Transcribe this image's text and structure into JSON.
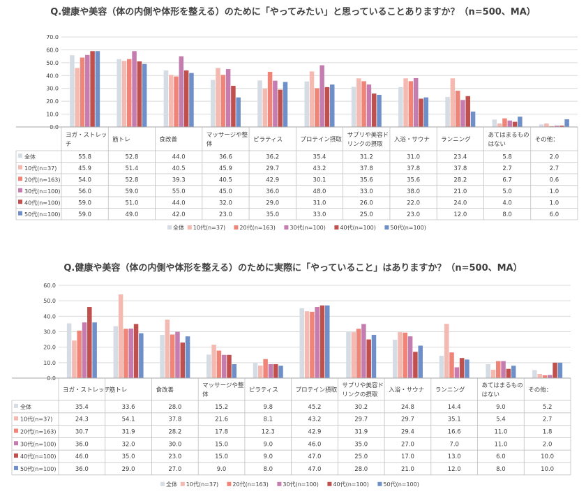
{
  "chart_data": [
    {
      "type": "bar",
      "title": "Q.健康や美容（体の内側や体形を整える）のために「やってみたい」と思っていることありますか？（n=500、MA）",
      "ylim": [
        0,
        70
      ],
      "yticks": [
        "0.0",
        "10.0",
        "20.0",
        "30.0",
        "40.0",
        "50.0",
        "60.0",
        "70.0"
      ],
      "grid": true,
      "legend": "bottom",
      "categories": [
        "ヨガ・ストレッチ",
        "筋トレ",
        "食改善",
        "マッサージや整体",
        "ピラティス",
        "プロテイン摂取",
        "サプリや美容ドリンクの摂取",
        "入浴・サウナ",
        "ランニング",
        "あてはまるものはない",
        "その他："
      ],
      "category_lines": [
        [
          "ヨガ・ストレッ",
          "チ"
        ],
        [
          "筋トレ"
        ],
        [
          "食改善"
        ],
        [
          "マッサージや整",
          "体"
        ],
        [
          "ピラティス"
        ],
        [
          "プロテイン摂取"
        ],
        [
          "サプリや美容ド",
          "リンクの摂取"
        ],
        [
          "入浴・サウナ"
        ],
        [
          "ランニング"
        ],
        [
          "あてはまるもの",
          "はない"
        ],
        [
          "その他："
        ]
      ],
      "series": [
        {
          "name": "全体",
          "color": "#d6dce4",
          "values": [
            "55.8",
            "52.8",
            "44.0",
            "36.6",
            "36.2",
            "35.4",
            "31.2",
            "31.0",
            "23.4",
            "5.8",
            "2.0"
          ]
        },
        {
          "name": "10代(n=37)",
          "color": "#f4b9b0",
          "values": [
            "45.9",
            "51.4",
            "40.5",
            "45.9",
            "29.7",
            "43.2",
            "37.8",
            "37.8",
            "37.8",
            "2.7",
            "2.7"
          ]
        },
        {
          "name": "20代(n=163)",
          "color": "#ef8479",
          "values": [
            "54.0",
            "52.8",
            "39.3",
            "40.5",
            "42.9",
            "30.1",
            "35.6",
            "35.6",
            "28.2",
            "6.7",
            "0.6"
          ]
        },
        {
          "name": "30代(n=100)",
          "color": "#c57daf",
          "values": [
            "56.0",
            "59.0",
            "55.0",
            "45.0",
            "36.0",
            "48.0",
            "33.0",
            "38.0",
            "21.0",
            "5.0",
            "1.0"
          ]
        },
        {
          "name": "40代(n=100)",
          "color": "#c0504d",
          "values": [
            "59.0",
            "51.0",
            "44.0",
            "32.0",
            "29.0",
            "31.0",
            "26.0",
            "22.0",
            "24.0",
            "4.0",
            "1.0"
          ]
        },
        {
          "name": "50代(n=100)",
          "color": "#6f8fc9",
          "values": [
            "59.0",
            "49.0",
            "42.0",
            "23.0",
            "35.0",
            "33.0",
            "25.0",
            "23.0",
            "12.0",
            "8.0",
            "6.0"
          ]
        }
      ]
    },
    {
      "type": "bar",
      "title": "Q.健康や美容（体の内側や体形を整える）のために実際に「やっていること」はありますか？（n=500、MA）",
      "ylim": [
        0,
        60
      ],
      "yticks": [
        "0.0",
        "10.0",
        "20.0",
        "30.0",
        "40.0",
        "50.0",
        "60.0"
      ],
      "grid": true,
      "legend": "bottom",
      "categories": [
        "ヨガ・ストレッチ",
        "筋トレ",
        "食改善",
        "マッサージや整体",
        "ピラティス",
        "プロテイン摂取",
        "サプリや美容ドリンクの摂取",
        "入浴・サウナ",
        "ランニング",
        "あてはまるものはない",
        "その他："
      ],
      "category_lines": [
        [
          "ヨガ・ストレッチ"
        ],
        [
          "筋トレ"
        ],
        [
          "食改善"
        ],
        [
          "マッサージや整",
          "体"
        ],
        [
          "ピラティス"
        ],
        [
          "プロテイン摂取"
        ],
        [
          "サプリや美容ド",
          "リンクの摂取"
        ],
        [
          "入浴・サウナ"
        ],
        [
          "ランニング"
        ],
        [
          "あてはまるもの",
          "はない"
        ],
        [
          "その他："
        ]
      ],
      "series": [
        {
          "name": "全体",
          "color": "#d6dce4",
          "values": [
            "35.4",
            "33.6",
            "28.0",
            "15.2",
            "9.8",
            "45.2",
            "30.2",
            "24.8",
            "14.4",
            "9.0",
            "5.2"
          ]
        },
        {
          "name": "10代(n=37)",
          "color": "#f4b9b0",
          "values": [
            "24.3",
            "54.1",
            "37.8",
            "21.6",
            "8.1",
            "43.2",
            "29.7",
            "29.7",
            "35.1",
            "5.4",
            "2.7"
          ]
        },
        {
          "name": "20代(n=163)",
          "color": "#ef8479",
          "values": [
            "30.7",
            "31.9",
            "28.2",
            "17.8",
            "12.3",
            "42.9",
            "31.9",
            "29.4",
            "16.6",
            "11.0",
            "1.8"
          ]
        },
        {
          "name": "30代(n=100)",
          "color": "#c57daf",
          "values": [
            "36.0",
            "32.0",
            "30.0",
            "15.0",
            "9.0",
            "46.0",
            "35.0",
            "27.0",
            "7.0",
            "11.0",
            "2.0"
          ]
        },
        {
          "name": "40代(n=100)",
          "color": "#c0504d",
          "values": [
            "46.0",
            "35.0",
            "23.0",
            "15.0",
            "9.0",
            "47.0",
            "25.0",
            "17.0",
            "13.0",
            "6.0",
            "10.0"
          ]
        },
        {
          "name": "50代(n=100)",
          "color": "#6f8fc9",
          "values": [
            "36.0",
            "29.0",
            "27.0",
            "9.0",
            "8.0",
            "47.0",
            "28.0",
            "21.0",
            "12.0",
            "8.0",
            "10.0"
          ]
        }
      ]
    }
  ]
}
